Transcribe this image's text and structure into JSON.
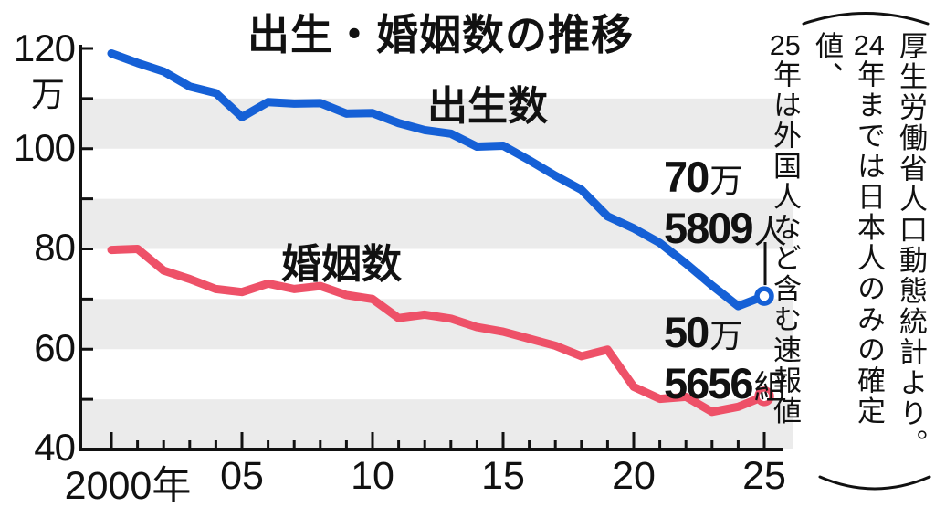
{
  "title": "出生・婚姻数の推移",
  "y_axis": {
    "unit": "万",
    "labels": [
      "120",
      "100",
      "80",
      "60",
      "40"
    ]
  },
  "x_axis": {
    "labels": [
      "2000年",
      "05",
      "10",
      "15",
      "20",
      "25"
    ]
  },
  "series_labels": {
    "births": "出生数",
    "marriages": "婚姻数"
  },
  "annotation_births": {
    "num1": "70",
    "unit1": "万",
    "num2": "5809",
    "unit2": "人"
  },
  "annotation_marriages": {
    "num1": "50",
    "unit1": "万",
    "num2": "5656",
    "unit2": "組"
  },
  "note": {
    "col1": "厚生労働省人口動態統計より。",
    "col2_num": "24",
    "col2_text": "年までは日本人のみの確定値、",
    "col3_num": "25",
    "col3_text": "年は外国人など含む速報値"
  },
  "colors": {
    "births": "#1560d6",
    "marriages": "#ee5168",
    "band": "#ebebeb",
    "axis": "#111111"
  },
  "chart_data": {
    "type": "line",
    "title": "出生・婚姻数の推移",
    "xlabel": "年",
    "ylabel": "万",
    "xlim": [
      2000,
      2025
    ],
    "ylim": [
      40,
      120
    ],
    "x_major_ticks": [
      2000,
      2005,
      2010,
      2015,
      2020,
      2025
    ],
    "y_major_ticks": [
      40,
      60,
      80,
      100,
      120
    ],
    "bands_y": [
      [
        110,
        100
      ],
      [
        90,
        80
      ],
      [
        70,
        60
      ],
      [
        50,
        40
      ]
    ],
    "x": [
      2000,
      2001,
      2002,
      2003,
      2004,
      2005,
      2006,
      2007,
      2008,
      2009,
      2010,
      2011,
      2012,
      2013,
      2014,
      2015,
      2016,
      2017,
      2018,
      2019,
      2020,
      2021,
      2022,
      2023,
      2024,
      2025
    ],
    "series": [
      {
        "name": "出生数",
        "color": "#1560d6",
        "values": [
          119.0,
          117.1,
          115.4,
          112.4,
          111.1,
          106.3,
          109.3,
          109.0,
          109.1,
          107.0,
          107.1,
          105.1,
          103.7,
          103.0,
          100.4,
          100.6,
          97.7,
          94.6,
          91.8,
          86.5,
          84.1,
          81.2,
          77.1,
          72.7,
          68.6,
          70.6
        ],
        "final_label": "70万5809人"
      },
      {
        "name": "婚姻数",
        "color": "#ee5168",
        "values": [
          79.8,
          80.0,
          75.7,
          74.0,
          72.0,
          71.4,
          73.1,
          72.0,
          72.6,
          70.8,
          70.0,
          66.2,
          66.9,
          66.1,
          64.4,
          63.5,
          62.1,
          60.7,
          58.6,
          59.9,
          52.5,
          50.1,
          50.5,
          47.5,
          48.5,
          50.6
        ],
        "final_label": "50万5656組"
      }
    ],
    "notes": "厚生労働省人口動態統計より。24年までは日本人のみの確定値、25年は外国人など含む速報値"
  }
}
